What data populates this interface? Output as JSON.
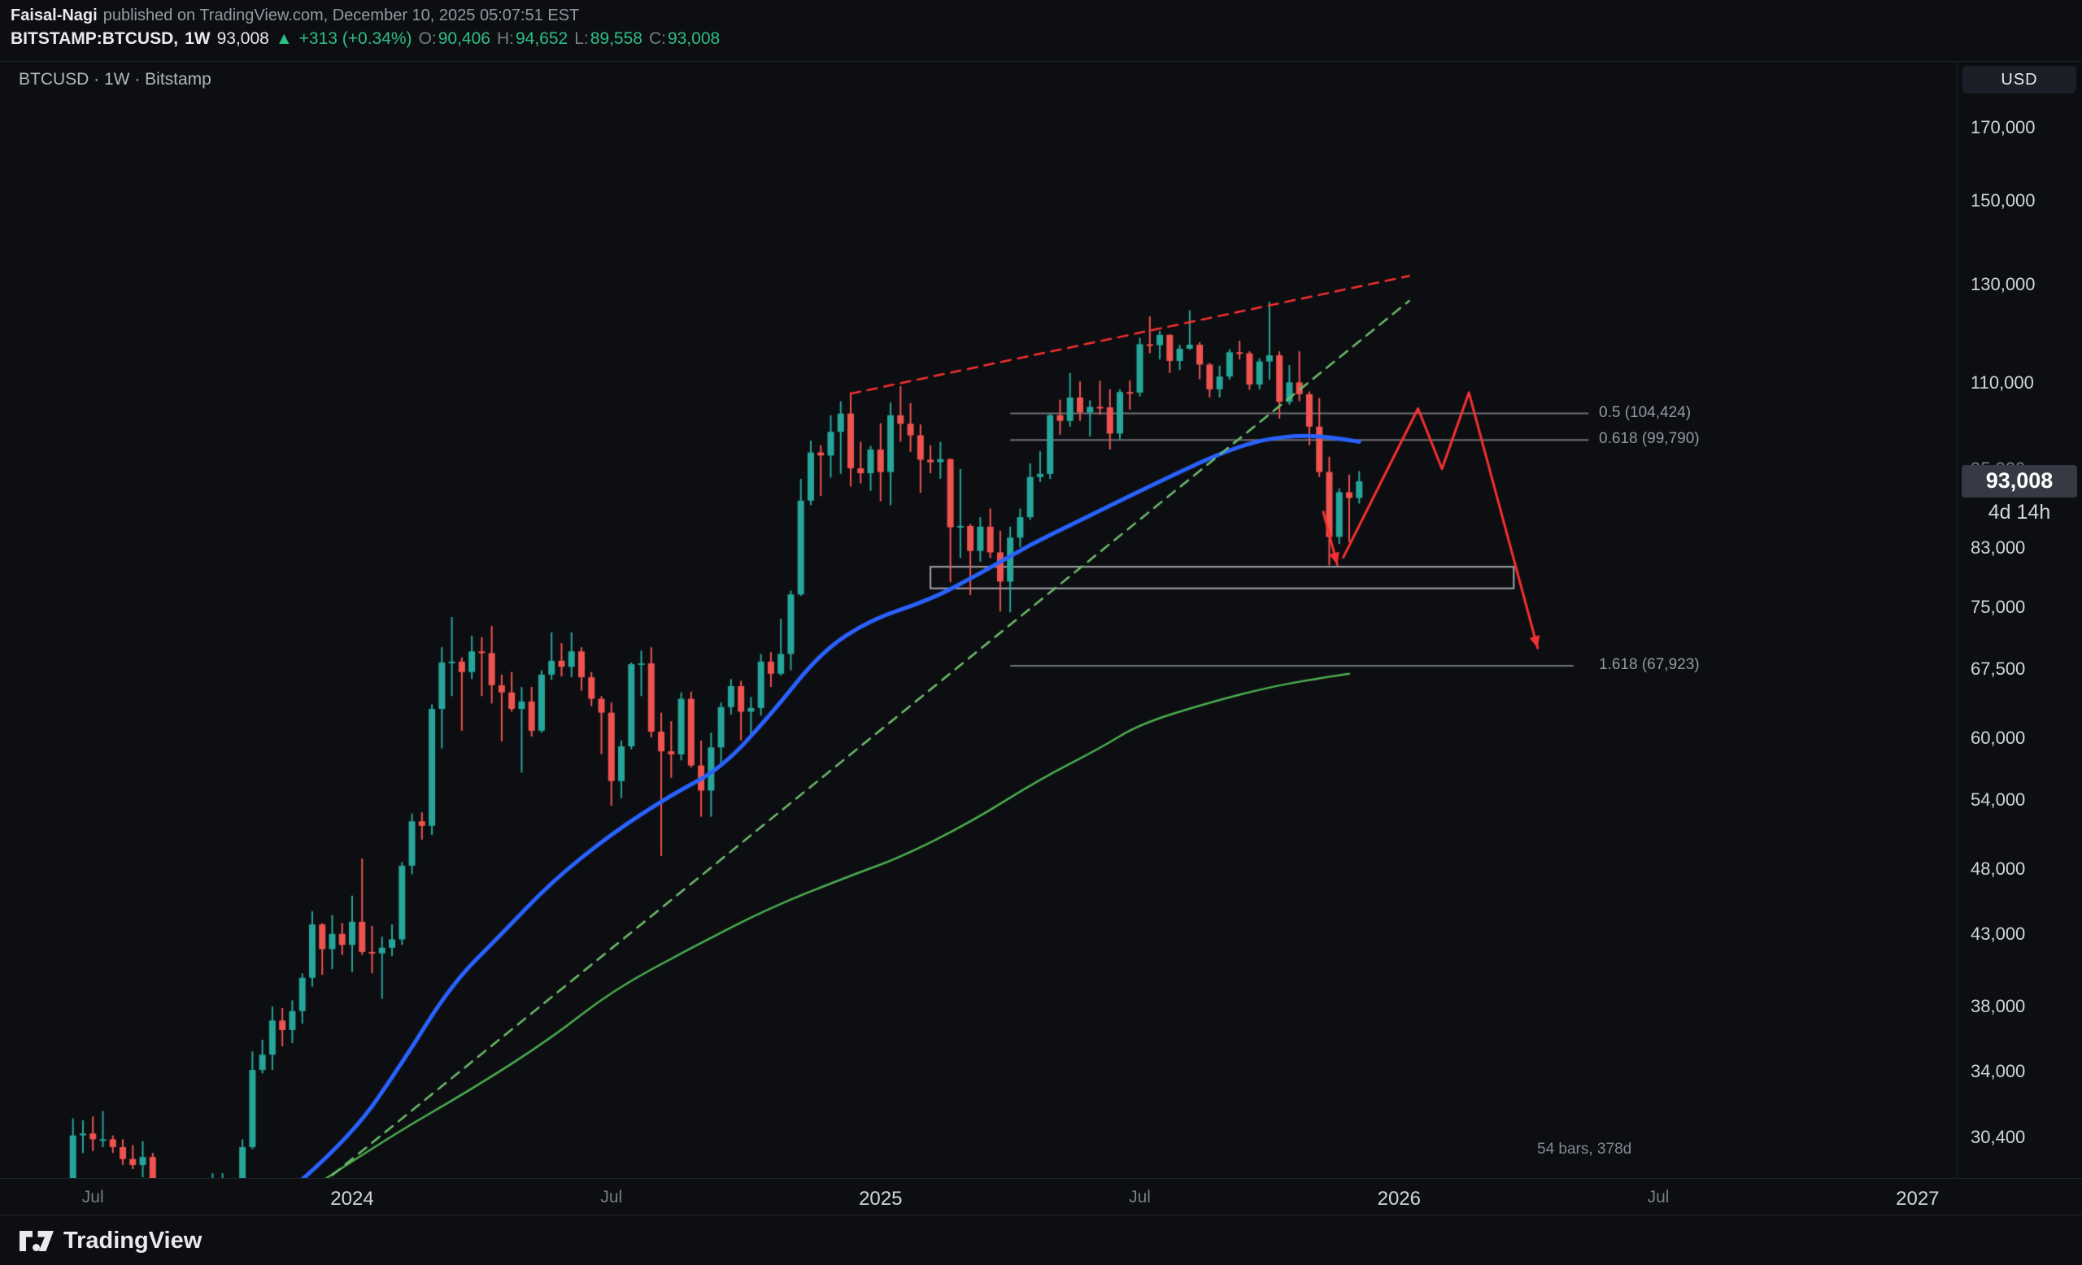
{
  "header": {
    "author": "Faisal-Nagi",
    "published": "published on TradingView.com, December 10, 2025 05:07:51 EST",
    "symbol": "BITSTAMP:BTCUSD,",
    "interval": "1W",
    "last": "93,008",
    "direction": "▲",
    "change": "+313 (+0.34%)",
    "o_label": "O:",
    "o_value": "90,406",
    "h_label": "H:",
    "h_value": "94,652",
    "l_label": "L:",
    "l_value": "89,558",
    "c_label": "C:",
    "c_value": "93,008"
  },
  "chart_title": "BTCUSD · 1W · Bitstamp",
  "price_axis": {
    "currency": "USD",
    "last_price_label": "93,008",
    "countdown": "4d 14h"
  },
  "footer": {
    "brand": "TradingView"
  },
  "chart_data": {
    "type": "candlestick",
    "symbol": "BTCUSD",
    "exchange": "Bitstamp",
    "interval": "1W",
    "scale": "log",
    "first_week": "2023-06-19",
    "title": "BTCUSD · 1W · Bitstamp",
    "ylim_visible": [
      28400,
      186000
    ],
    "price_ticks": [
      170000,
      150000,
      130000,
      110000,
      83000,
      75000,
      67500,
      60000,
      54000,
      48000,
      43000,
      38000,
      34000,
      30400
    ],
    "hidden_price_tick": 95000,
    "last_price": 93008,
    "countdown": "4d 14h",
    "time_ticks": [
      {
        "label": "Jul",
        "index": 2,
        "major": false
      },
      {
        "label": "2024",
        "index": 28,
        "major": true
      },
      {
        "label": "Jul",
        "index": 54,
        "major": false
      },
      {
        "label": "2025",
        "index": 81,
        "major": true
      },
      {
        "label": "Jul",
        "index": 107,
        "major": false
      },
      {
        "label": "2026",
        "index": 133,
        "major": true
      },
      {
        "label": "Jul",
        "index": 159,
        "major": false
      },
      {
        "label": "2027",
        "index": 185,
        "major": true
      }
    ],
    "colors": {
      "up": "#26a69a",
      "down": "#ef5350",
      "ma_fast": "#2962ff",
      "ma_slow": "#4caf50",
      "support": "#6ec06e",
      "resistance": "#f73030",
      "projection": "#f73030",
      "fib": "rgba(190,193,200,0.55)",
      "box": "rgba(216,218,224,0.75)"
    },
    "ohlc": [
      [
        26600,
        31400,
        26300,
        30500
      ],
      [
        30500,
        31300,
        29600,
        30600
      ],
      [
        30600,
        31500,
        29700,
        30300
      ],
      [
        30300,
        31800,
        29900,
        30300
      ],
      [
        30300,
        30500,
        29600,
        29900
      ],
      [
        29900,
        30300,
        29000,
        29300
      ],
      [
        29300,
        30000,
        28800,
        29000
      ],
      [
        29000,
        30200,
        28400,
        29400
      ],
      [
        29400,
        29600,
        25600,
        26100
      ],
      [
        26100,
        26800,
        25800,
        26000
      ],
      [
        26000,
        28100,
        25400,
        25900
      ],
      [
        25900,
        26400,
        25300,
        25800
      ],
      [
        25800,
        26800,
        24900,
        26500
      ],
      [
        26500,
        27400,
        26100,
        26200
      ],
      [
        26200,
        28600,
        26000,
        27900
      ],
      [
        27900,
        28600,
        27200,
        27900
      ],
      [
        27900,
        28000,
        26500,
        26800
      ],
      [
        26800,
        30300,
        26700,
        29900
      ],
      [
        29900,
        35200,
        29800,
        34100
      ],
      [
        34100,
        35900,
        33900,
        35000
      ],
      [
        35000,
        38000,
        34100,
        37100
      ],
      [
        37100,
        37900,
        35500,
        36500
      ],
      [
        36500,
        38400,
        35700,
        37700
      ],
      [
        37700,
        40200,
        36900,
        39900
      ],
      [
        39900,
        44700,
        39300,
        43700
      ],
      [
        43700,
        43800,
        40100,
        41900
      ],
      [
        41900,
        44400,
        40500,
        43000
      ],
      [
        43000,
        43800,
        41500,
        42200
      ],
      [
        42200,
        45900,
        40300,
        43900
      ],
      [
        43900,
        48900,
        41500,
        41700
      ],
      [
        41700,
        43600,
        40200,
        41600
      ],
      [
        41600,
        42800,
        38500,
        42000
      ],
      [
        42000,
        43700,
        41400,
        42600
      ],
      [
        42600,
        48600,
        42200,
        48300
      ],
      [
        48300,
        52800,
        47600,
        52100
      ],
      [
        52100,
        52900,
        50500,
        51700
      ],
      [
        51700,
        63600,
        50900,
        63100
      ],
      [
        63100,
        70100,
        59000,
        68300
      ],
      [
        68300,
        73800,
        64500,
        68400
      ],
      [
        68400,
        68900,
        60800,
        67200
      ],
      [
        67200,
        71500,
        66400,
        69600
      ],
      [
        69600,
        71300,
        64500,
        69400
      ],
      [
        69400,
        72700,
        63700,
        65700
      ],
      [
        65700,
        66900,
        59700,
        64900
      ],
      [
        64900,
        67200,
        62800,
        63100
      ],
      [
        63100,
        65500,
        56600,
        63900
      ],
      [
        63900,
        65500,
        60200,
        60800
      ],
      [
        60800,
        67400,
        60600,
        66900
      ],
      [
        66900,
        71900,
        66300,
        68500
      ],
      [
        68500,
        70600,
        66700,
        67800
      ],
      [
        67800,
        71900,
        66600,
        69600
      ],
      [
        69600,
        70100,
        65100,
        66600
      ],
      [
        66600,
        67200,
        63400,
        64200
      ],
      [
        64200,
        64500,
        58400,
        62700
      ],
      [
        62700,
        63800,
        53500,
        55800
      ],
      [
        55800,
        59800,
        54200,
        59200
      ],
      [
        59200,
        68300,
        58900,
        68100
      ],
      [
        68100,
        69700,
        64500,
        68200
      ],
      [
        68200,
        70100,
        60100,
        60700
      ],
      [
        60700,
        62700,
        49100,
        58700
      ],
      [
        58700,
        61800,
        56100,
        58400
      ],
      [
        58400,
        64900,
        57800,
        64200
      ],
      [
        64200,
        65000,
        57100,
        57300
      ],
      [
        57300,
        59800,
        52500,
        54900
      ],
      [
        54900,
        60600,
        52500,
        59100
      ],
      [
        59100,
        63800,
        57400,
        63300
      ],
      [
        63300,
        66400,
        62500,
        65600
      ],
      [
        65600,
        66200,
        59800,
        62800
      ],
      [
        62800,
        64400,
        60300,
        63200
      ],
      [
        63200,
        69300,
        62400,
        68400
      ],
      [
        68400,
        69500,
        65500,
        67000
      ],
      [
        67000,
        73600,
        66800,
        69300
      ],
      [
        69300,
        77200,
        67400,
        76700
      ],
      [
        76700,
        93400,
        76500,
        90000
      ],
      [
        90000,
        99700,
        89300,
        97700
      ],
      [
        97700,
        98900,
        90700,
        97200
      ],
      [
        97200,
        104100,
        93600,
        101200
      ],
      [
        101200,
        106600,
        94200,
        104400
      ],
      [
        104400,
        108300,
        92200,
        95100
      ],
      [
        95100,
        99500,
        92700,
        94300
      ],
      [
        94300,
        98800,
        91500,
        98200
      ],
      [
        98200,
        102700,
        89900,
        94500
      ],
      [
        94500,
        106400,
        89300,
        104100
      ],
      [
        104100,
        109400,
        99500,
        102600
      ],
      [
        102600,
        106300,
        97800,
        100600
      ],
      [
        100600,
        102500,
        91200,
        96500
      ],
      [
        96500,
        98900,
        94300,
        96100
      ],
      [
        96100,
        99500,
        93400,
        96600
      ],
      [
        96600,
        96700,
        78300,
        86000
      ],
      [
        86000,
        95000,
        81600,
        86200
      ],
      [
        86200,
        86500,
        76600,
        82600
      ],
      [
        82600,
        87500,
        81100,
        86100
      ],
      [
        86100,
        88800,
        81600,
        82400
      ],
      [
        82400,
        85500,
        74500,
        78400
      ],
      [
        78400,
        86100,
        74400,
        84500
      ],
      [
        84500,
        88800,
        83100,
        87500
      ],
      [
        87500,
        95900,
        87100,
        93700
      ],
      [
        93700,
        97900,
        92900,
        94200
      ],
      [
        94200,
        104300,
        93400,
        104100
      ],
      [
        104100,
        106900,
        100700,
        103100
      ],
      [
        103100,
        111900,
        102100,
        107300
      ],
      [
        107300,
        110300,
        103100,
        104600
      ],
      [
        104600,
        106800,
        100400,
        105600
      ],
      [
        105600,
        110400,
        104200,
        105500
      ],
      [
        105500,
        108800,
        98200,
        100900
      ],
      [
        100900,
        108800,
        99900,
        108300
      ],
      [
        108300,
        110500,
        105100,
        108200
      ],
      [
        108200,
        118800,
        107500,
        117500
      ],
      [
        117500,
        123200,
        115700,
        117300
      ],
      [
        117300,
        120200,
        114500,
        119400
      ],
      [
        119400,
        119500,
        111900,
        114200
      ],
      [
        114200,
        117400,
        112400,
        116600
      ],
      [
        116600,
        124500,
        116400,
        117400
      ],
      [
        117400,
        117900,
        110700,
        113500
      ],
      [
        113500,
        113800,
        107300,
        108800
      ],
      [
        108800,
        113300,
        107300,
        111200
      ],
      [
        111200,
        116500,
        110600,
        115900
      ],
      [
        115900,
        118200,
        114500,
        115700
      ],
      [
        115700,
        116100,
        108700,
        109700
      ],
      [
        109700,
        114700,
        108800,
        114100
      ],
      [
        114100,
        126300,
        110600,
        115300
      ],
      [
        115300,
        116100,
        103500,
        106500
      ],
      [
        106500,
        113400,
        106000,
        110100
      ],
      [
        110100,
        116100,
        106600,
        107900
      ],
      [
        107900,
        108400,
        98900,
        102100
      ],
      [
        102100,
        107200,
        93700,
        94500
      ],
      [
        94500,
        97000,
        80600,
        84600
      ],
      [
        84600,
        91900,
        83600,
        91300
      ],
      [
        91300,
        94100,
        83900,
        90406
      ],
      [
        90406,
        94652,
        89558,
        93008
      ]
    ],
    "overlays": {
      "ma_fast": {
        "name": "blue-moving-average",
        "width": 5,
        "points": [
          [
            23,
            28300
          ],
          [
            28,
            30500
          ],
          [
            33,
            34500
          ],
          [
            38,
            39500
          ],
          [
            43,
            43000
          ],
          [
            48,
            47000
          ],
          [
            54,
            51000
          ],
          [
            60,
            54500
          ],
          [
            65,
            57000
          ],
          [
            70,
            62500
          ],
          [
            75,
            69500
          ],
          [
            80,
            73500
          ],
          [
            86,
            76000
          ],
          [
            91,
            79500
          ],
          [
            96,
            83500
          ],
          [
            101,
            87000
          ],
          [
            107,
            91500
          ],
          [
            111,
            94500
          ],
          [
            115,
            97500
          ],
          [
            118,
            99200
          ],
          [
            120,
            100000
          ],
          [
            123,
            100600
          ],
          [
            126,
            100300
          ],
          [
            129,
            99500
          ]
        ]
      },
      "ma_slow": {
        "name": "green-moving-average",
        "width": 2.5,
        "points": [
          [
            23,
            27600
          ],
          [
            31,
            30200
          ],
          [
            40,
            33000
          ],
          [
            48,
            36000
          ],
          [
            54,
            39000
          ],
          [
            62,
            42000
          ],
          [
            70,
            45000
          ],
          [
            78,
            47500
          ],
          [
            83,
            49000
          ],
          [
            90,
            52000
          ],
          [
            97,
            56000
          ],
          [
            103,
            59000
          ],
          [
            107,
            61500
          ],
          [
            114,
            63800
          ],
          [
            120,
            65500
          ],
          [
            125,
            66500
          ],
          [
            128,
            67000
          ]
        ]
      },
      "trend_support": {
        "name": "ascending-support-trendline",
        "dash": [
          12,
          9
        ],
        "width": 2.5,
        "from": [
          26,
          28500
        ],
        "to": [
          134,
          126500
        ]
      },
      "trend_resistance": {
        "name": "descending-resistance-trendline",
        "dash": [
          12,
          9
        ],
        "width": 2.5,
        "from": [
          78,
          108000
        ],
        "to": [
          134,
          132000
        ]
      }
    },
    "drawings": {
      "fib_levels": [
        {
          "label": "0.5 (104,424)",
          "price": 104424,
          "i1": 94,
          "i2": 152
        },
        {
          "label": "0.618 (99,790)",
          "price": 99790,
          "i1": 94,
          "i2": 152
        },
        {
          "label": "1.618 (67,923)",
          "price": 67923,
          "i1": 94,
          "i2": 150.5
        }
      ],
      "box": {
        "i1": 86,
        "i2": 144.5,
        "p1": 80400,
        "p2": 77500
      },
      "projection": [
        {
          "points": [
            [
              125.4,
              88300
            ],
            [
              126.8,
              80700
            ]
          ],
          "arrow": true
        },
        {
          "points": [
            [
              127.4,
              81700
            ],
            [
              134.9,
              105300
            ],
            [
              137.3,
              95000
            ],
            [
              140,
              108200
            ],
            [
              146.9,
              70000
            ]
          ],
          "arrow": true
        }
      ],
      "measure_label": "54 bars, 378d"
    }
  }
}
